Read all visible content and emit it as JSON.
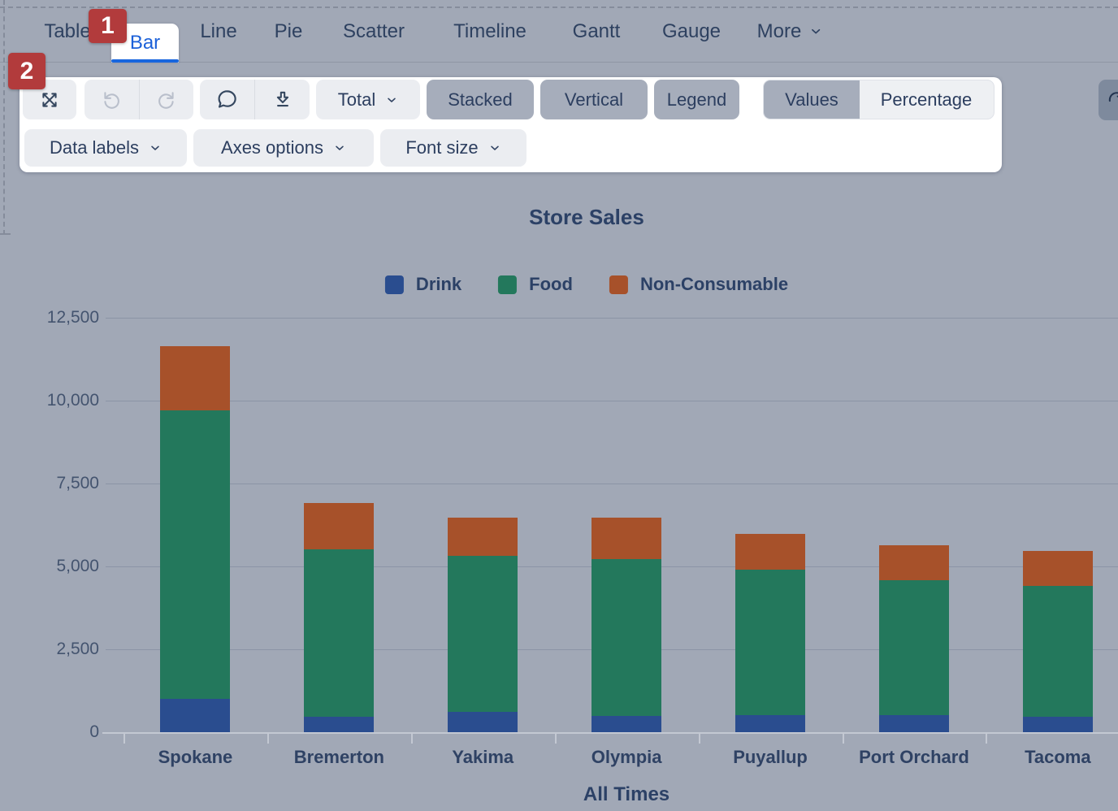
{
  "tabs": {
    "items": [
      {
        "label": "Table",
        "active": false
      },
      {
        "label": "Bar",
        "active": true
      },
      {
        "label": "Line",
        "active": false
      },
      {
        "label": "Pie",
        "active": false
      },
      {
        "label": "Scatter",
        "active": false
      },
      {
        "label": "Timeline",
        "active": false
      },
      {
        "label": "Gantt",
        "active": false
      },
      {
        "label": "Gauge",
        "active": false
      },
      {
        "label": "More",
        "active": false,
        "chevron": true
      }
    ]
  },
  "annotations": {
    "marker1": "1",
    "marker2": "2"
  },
  "toolbar": {
    "icons": [
      "expand-icon",
      "undo-icon",
      "redo-icon",
      "comment-icon",
      "download-icon",
      "reset-icon",
      "chevron-down-icon"
    ],
    "undo_enabled": false,
    "redo_enabled": false,
    "buttons": {
      "total": "Total",
      "stacked": "Stacked",
      "vertical": "Vertical",
      "legend": "Legend",
      "values": "Values",
      "percentage": "Percentage",
      "data_labels": "Data labels",
      "axes_options": "Axes options",
      "font_size": "Font size"
    },
    "state": {
      "stacked_on": true,
      "vertical_on": true,
      "legend_on": true,
      "value_mode": "Values"
    }
  },
  "colors": {
    "background": "#a1a8b6",
    "panel": "#ffffff",
    "accent_blue": "#1c61d9",
    "badge_red": "#b23b3c",
    "toggle_on": "#a6adbb",
    "navy_text": "#2c4166"
  },
  "chart_data": {
    "type": "bar",
    "stacked": true,
    "orientation": "vertical",
    "title": "Store Sales",
    "xlabel": "All Times",
    "ylabel": "",
    "legend_position": "top",
    "grid": true,
    "ylim": [
      0,
      12500
    ],
    "y_ticks": [
      "0",
      "2,500",
      "5,000",
      "7,500",
      "10,000",
      "12,500"
    ],
    "categories": [
      "Spokane",
      "Bremerton",
      "Yakima",
      "Olympia",
      "Puyallup",
      "Port Orchard",
      "Tacoma"
    ],
    "series": [
      {
        "name": "Drink",
        "color": "#2a4d8f",
        "values": [
          1000,
          475,
          620,
          490,
          515,
          515,
          460
        ]
      },
      {
        "name": "Food",
        "color": "#23785c",
        "values": [
          8700,
          5050,
          4700,
          4740,
          4380,
          4070,
          3940
        ]
      },
      {
        "name": "Non-Consumable",
        "color": "#a7512a",
        "values": [
          1950,
          1375,
          1150,
          1230,
          1090,
          1045,
          1065
        ]
      }
    ]
  }
}
